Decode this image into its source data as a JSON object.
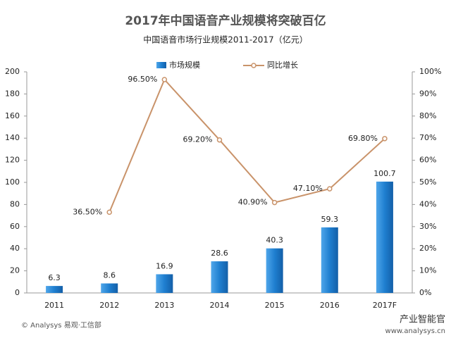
{
  "chart_data": {
    "type": "bar_line",
    "title": "2017年中国语音产业规模将突破百亿",
    "subtitle": "中国语音市场行业规模2011-2017（亿元）",
    "categories": [
      "2011",
      "2012",
      "2013",
      "2014",
      "2015",
      "2016",
      "2017F"
    ],
    "series": [
      {
        "name": "市场规模",
        "color": "#1f7fd0",
        "values": [
          6.3,
          8.6,
          16.9,
          28.6,
          40.3,
          59.3,
          100.7
        ]
      },
      {
        "name": "同比增长",
        "color": "#c9936a",
        "axis": "y2",
        "values": [
          null,
          36.5,
          96.5,
          69.2,
          40.9,
          47.1,
          69.8
        ],
        "value_labels": [
          null,
          "36.50%",
          "96.50%",
          "69.20%",
          "40.90%",
          "47.10%",
          "69.80%"
        ]
      }
    ],
    "ylim": [
      0,
      200
    ],
    "yticks": [
      0,
      20,
      40,
      60,
      80,
      100,
      120,
      140,
      160,
      180,
      200
    ],
    "y2lim": [
      0,
      100
    ],
    "y2ticks": [
      {
        "value": 0,
        "label": "0%"
      },
      {
        "value": 10,
        "label": "10%"
      },
      {
        "value": 20,
        "label": "20%"
      },
      {
        "value": 30,
        "label": "30%"
      },
      {
        "value": 40,
        "label": "40%"
      },
      {
        "value": 50,
        "label": "50%"
      },
      {
        "value": 60,
        "label": "60%"
      },
      {
        "value": 70,
        "label": "70%"
      },
      {
        "value": 80,
        "label": "80%"
      },
      {
        "value": 90,
        "label": "90%"
      },
      {
        "value": 100,
        "label": "100%"
      }
    ],
    "source": "© Analysys 易观·工信部",
    "credits": [
      "产业智能官",
      "www.analysys.cn"
    ]
  }
}
